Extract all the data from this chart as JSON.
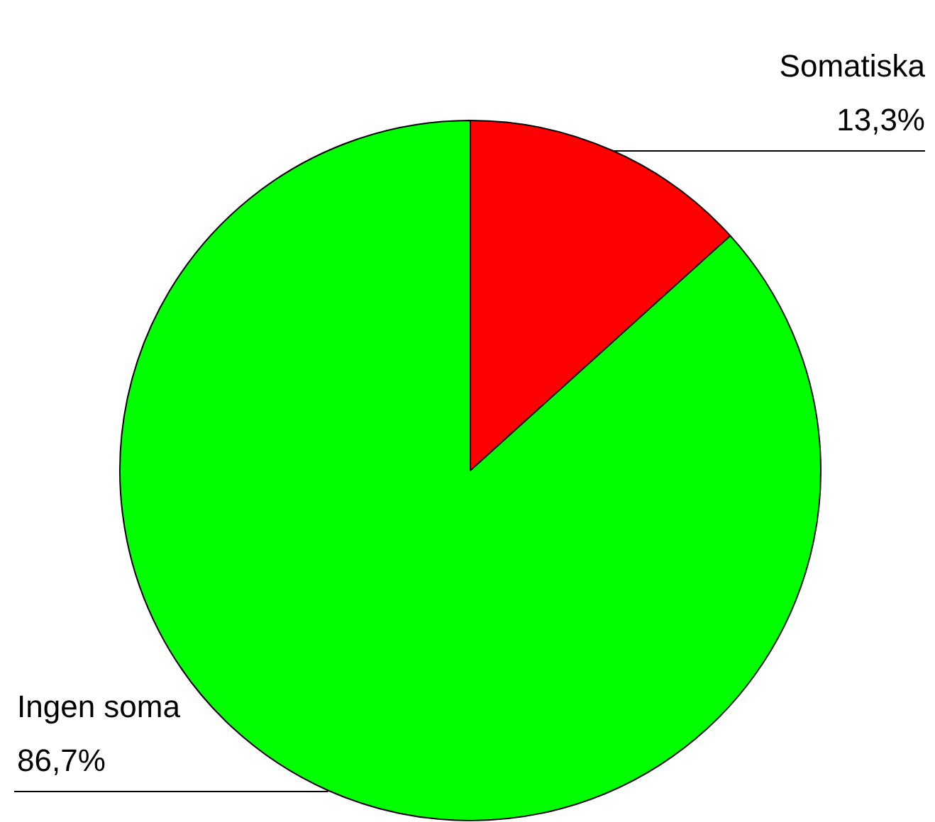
{
  "chart_data": {
    "type": "pie",
    "categories": [
      "Somatiska",
      "Ingen soma"
    ],
    "values": [
      13.3,
      86.7
    ],
    "colors": [
      "#ff0000",
      "#00ff00"
    ],
    "value_labels": [
      "13,3%",
      "86,7%"
    ],
    "legend": false
  }
}
